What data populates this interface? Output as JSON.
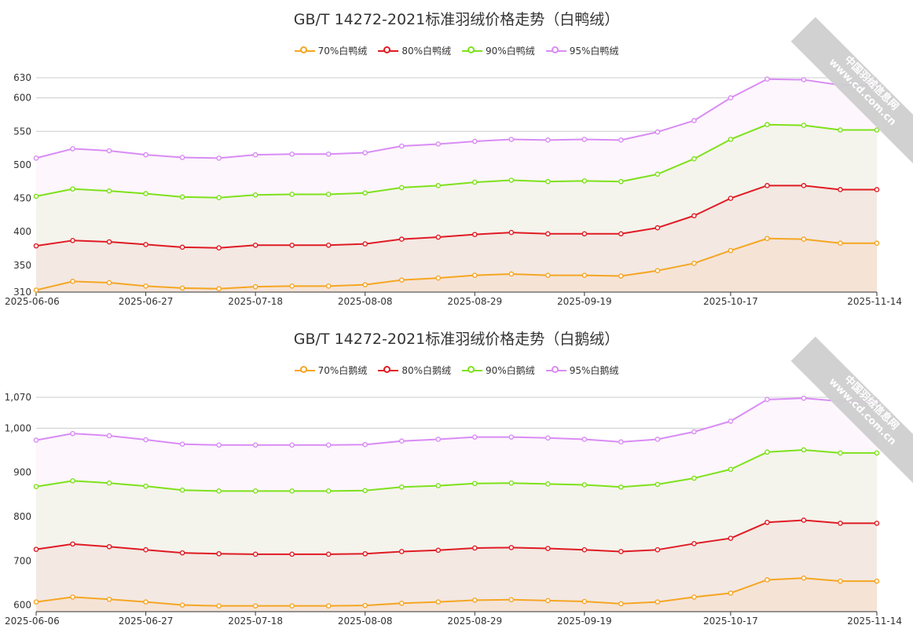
{
  "charts": [
    {
      "title": "GB/T 14272-2021标准羽绒价格走势（白鸭绒）",
      "watermark": {
        "line1": "中国羽绒信息网",
        "line2": "www.cd.com.cn"
      }
    },
    {
      "title": "GB/T 14272-2021标准羽绒价格走势（白鹅绒）",
      "watermark": {
        "line1": "中国羽绒信息网",
        "line2": "www.cd.com.cn"
      }
    }
  ],
  "chart_data": [
    {
      "type": "area",
      "title": "GB/T 14272-2021标准羽绒价格走势（白鸭绒）",
      "x": [
        "2025-06-06",
        "2025-06-13",
        "2025-06-20",
        "2025-06-27",
        "2025-07-04",
        "2025-07-11",
        "2025-07-18",
        "2025-07-25",
        "2025-08-01",
        "2025-08-08",
        "2025-08-15",
        "2025-08-22",
        "2025-08-29",
        "2025-09-05",
        "2025-09-12",
        "2025-09-19",
        "2025-09-26",
        "2025-10-03",
        "2025-10-10",
        "2025-10-17",
        "2025-10-24",
        "2025-10-31",
        "2025-11-07",
        "2025-11-14"
      ],
      "x_tick_labels": [
        "2025-06-06",
        "2025-06-27",
        "2025-07-18",
        "2025-08-08",
        "2025-08-29",
        "2025-09-19",
        "2025-10-17",
        "2025-11-14"
      ],
      "y_tick_labels": [
        "310",
        "350",
        "400",
        "450",
        "500",
        "550",
        "600",
        "630"
      ],
      "ylim": [
        310,
        630
      ],
      "grid": true,
      "legend_position": "top-center",
      "series": [
        {
          "name": "70%白鸭绒",
          "color": "#f5a623",
          "fill": "#f5e3d6",
          "values": [
            313,
            326,
            324,
            319,
            316,
            315,
            318,
            319,
            319,
            321,
            328,
            331,
            335,
            337,
            335,
            335,
            334,
            342,
            353,
            372,
            390,
            389,
            383,
            383
          ]
        },
        {
          "name": "80%白鸭绒",
          "color": "#e01b24",
          "fill": "#f3e8e2",
          "values": [
            379,
            387,
            385,
            381,
            377,
            376,
            380,
            380,
            380,
            382,
            389,
            392,
            396,
            399,
            397,
            397,
            397,
            406,
            424,
            450,
            469,
            469,
            463,
            463
          ]
        },
        {
          "name": "90%白鸭绒",
          "color": "#7ee11b",
          "fill": "#f4f4ec",
          "values": [
            453,
            464,
            461,
            457,
            452,
            451,
            455,
            456,
            456,
            458,
            466,
            469,
            474,
            477,
            475,
            476,
            475,
            486,
            509,
            538,
            560,
            559,
            552,
            552
          ]
        },
        {
          "name": "95%白鸭绒",
          "color": "#d98cf5",
          "fill": "#fdf6fc",
          "values": [
            510,
            524,
            521,
            515,
            511,
            510,
            515,
            516,
            516,
            518,
            528,
            531,
            535,
            538,
            537,
            538,
            537,
            549,
            566,
            600,
            628,
            627,
            619,
            619
          ]
        }
      ]
    },
    {
      "type": "area",
      "title": "GB/T 14272-2021标准羽绒价格走势（白鹅绒）",
      "x": [
        "2025-06-06",
        "2025-06-13",
        "2025-06-20",
        "2025-06-27",
        "2025-07-04",
        "2025-07-11",
        "2025-07-18",
        "2025-07-25",
        "2025-08-01",
        "2025-08-08",
        "2025-08-15",
        "2025-08-22",
        "2025-08-29",
        "2025-09-05",
        "2025-09-12",
        "2025-09-19",
        "2025-09-26",
        "2025-10-03",
        "2025-10-10",
        "2025-10-17",
        "2025-10-24",
        "2025-10-31",
        "2025-11-07",
        "2025-11-14"
      ],
      "x_tick_labels": [
        "2025-06-06",
        "2025-06-27",
        "2025-07-18",
        "2025-08-08",
        "2025-08-29",
        "2025-09-19",
        "2025-10-17",
        "2025-11-14"
      ],
      "y_tick_labels": [
        "600",
        "700",
        "800",
        "900",
        "1,000",
        "1,070"
      ],
      "ylim": [
        585,
        1070
      ],
      "grid": true,
      "legend_position": "top-center",
      "series": [
        {
          "name": "70%白鹅绒",
          "color": "#f5a623",
          "fill": "#f5e3d6",
          "values": [
            607,
            618,
            613,
            607,
            600,
            598,
            598,
            598,
            598,
            599,
            604,
            607,
            611,
            612,
            610,
            608,
            603,
            607,
            618,
            627,
            657,
            661,
            654,
            654
          ]
        },
        {
          "name": "80%白鹅绒",
          "color": "#e01b24",
          "fill": "#f3e8e2",
          "values": [
            726,
            738,
            732,
            725,
            718,
            716,
            715,
            715,
            715,
            716,
            721,
            724,
            729,
            730,
            728,
            725,
            721,
            725,
            739,
            751,
            787,
            792,
            785,
            785
          ]
        },
        {
          "name": "90%白鹅绒",
          "color": "#7ee11b",
          "fill": "#f4f4ec",
          "values": [
            868,
            881,
            876,
            869,
            860,
            858,
            858,
            858,
            858,
            859,
            867,
            870,
            875,
            876,
            874,
            872,
            867,
            873,
            887,
            907,
            946,
            951,
            944,
            944
          ]
        },
        {
          "name": "95%白鹅绒",
          "color": "#d98cf5",
          "fill": "#fdf6fc",
          "values": [
            973,
            988,
            983,
            974,
            964,
            962,
            962,
            962,
            962,
            963,
            971,
            975,
            980,
            980,
            978,
            975,
            969,
            975,
            992,
            1016,
            1065,
            1068,
            1061,
            1061
          ]
        }
      ]
    }
  ]
}
